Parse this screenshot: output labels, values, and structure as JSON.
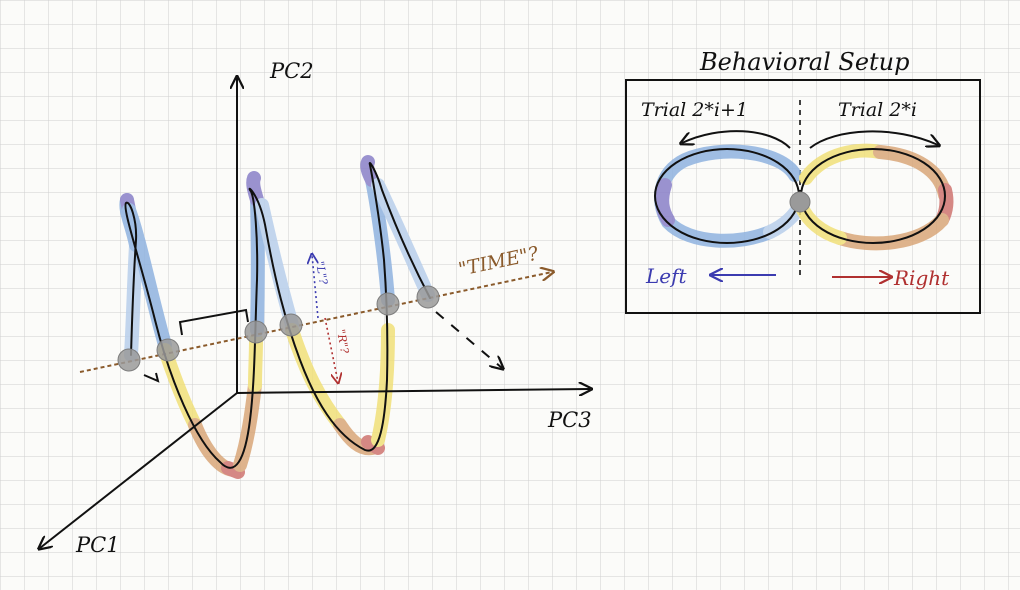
{
  "axes": {
    "pc1": "PC1",
    "pc2": "PC2",
    "pc3": "PC3",
    "time": "\"TIME\"?",
    "left_marker": "\"L\"?",
    "right_marker": "\"R\"?"
  },
  "setup": {
    "title": "Behavioral Setup",
    "trial_left": "Trial 2*i+1",
    "trial_right": "Trial 2*i",
    "left_label": "Left",
    "right_label": "Right"
  },
  "colors": {
    "grid": "#cfcfcf",
    "ink": "#111111",
    "blue": "#8fb3e0",
    "purple": "#8a80c8",
    "yellow": "#f1e07a",
    "orange": "#d9a77a",
    "red": "#cf7470",
    "node": "#9a9a9a",
    "time_arrow": "#8a5a2b",
    "left_text": "#3b3bb0",
    "right_text": "#b03030"
  }
}
